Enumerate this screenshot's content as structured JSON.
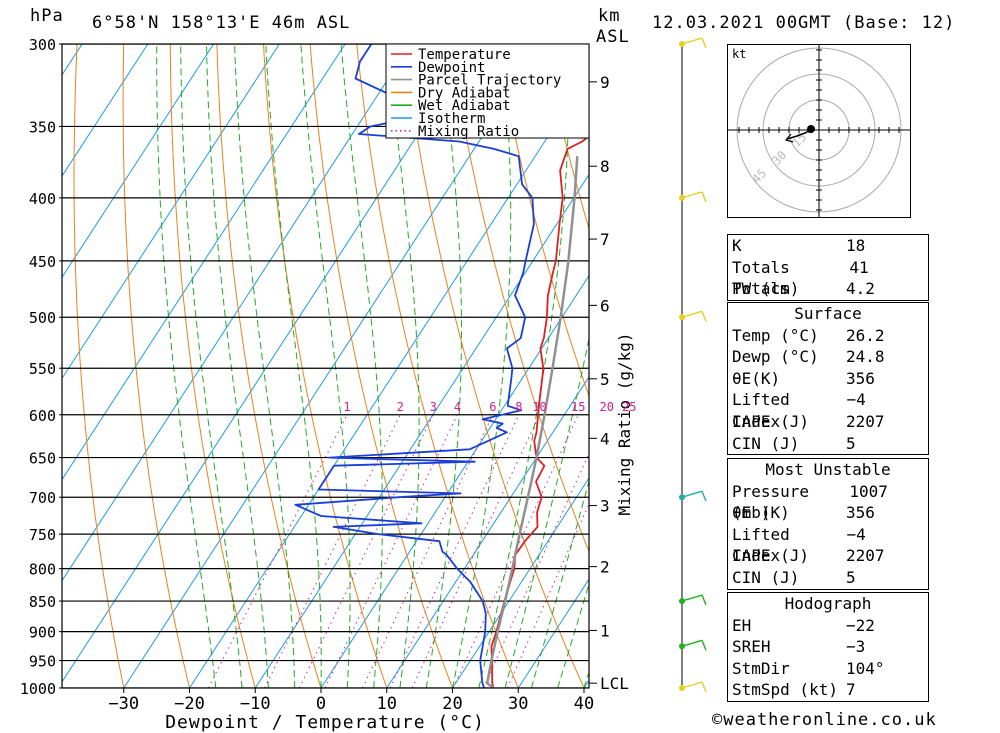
{
  "header": {
    "left_unit": "hPa",
    "location": "6°58'N 158°13'E 46m ASL",
    "km_label": "km",
    "asl_label": "ASL",
    "datetime": "12.03.2021 00GMT (Base: 12)"
  },
  "chart_data": {
    "type": "line",
    "xlabel": "Dewpoint / Temperature (°C)",
    "ylabel_left": "hPa",
    "ylabel_right": "Mixing Ratio (g/kg)",
    "pressure_ticks": [
      300,
      350,
      400,
      450,
      500,
      550,
      600,
      650,
      700,
      750,
      800,
      850,
      900,
      950,
      1000
    ],
    "temp_ticks": [
      -30,
      -20,
      -10,
      0,
      10,
      20,
      30,
      40
    ],
    "height_ticks_km": [
      {
        "label": "9",
        "p": 322
      },
      {
        "label": "8",
        "p": 377
      },
      {
        "label": "7",
        "p": 432
      },
      {
        "label": "6",
        "p": 489
      },
      {
        "label": "5",
        "p": 561
      },
      {
        "label": "4",
        "p": 627
      },
      {
        "label": "3",
        "p": 711
      },
      {
        "label": "2",
        "p": 797
      },
      {
        "label": "1",
        "p": 898
      },
      {
        "label": "LCL",
        "p": 991
      }
    ],
    "mixing_ratio_labels": [
      "1",
      "2",
      "3",
      "4",
      "6",
      "8",
      "10",
      "15",
      "20",
      "25"
    ],
    "mixing_ratio_values": [
      1,
      2,
      3,
      4,
      6,
      8,
      10,
      15,
      20,
      25
    ],
    "legend": [
      {
        "name": "Temperature",
        "color": "#e02020",
        "style": "solid"
      },
      {
        "name": "Dewpoint",
        "color": "#1a3fd6",
        "style": "solid"
      },
      {
        "name": "Parcel Trajectory",
        "color": "#909090",
        "style": "solid"
      },
      {
        "name": "Dry Adiabat",
        "color": "#e8821e",
        "style": "solid"
      },
      {
        "name": "Wet Adiabat",
        "color": "#22aa22",
        "style": "solid"
      },
      {
        "name": "Isotherm",
        "color": "#1f9be0",
        "style": "solid"
      },
      {
        "name": "Mixing Ratio",
        "color": "#d02090",
        "style": "dotted"
      }
    ],
    "series": [
      {
        "name": "Temperature",
        "color": "#e02020",
        "points": [
          [
            1000,
            26.2
          ],
          [
            990,
            25.5
          ],
          [
            950,
            23.3
          ],
          [
            925,
            21.8
          ],
          [
            900,
            21.1
          ],
          [
            850,
            19.3
          ],
          [
            800,
            17.6
          ],
          [
            780,
            16.4
          ],
          [
            760,
            16.5
          ],
          [
            740,
            17.0
          ],
          [
            720,
            15.5
          ],
          [
            700,
            14.7
          ],
          [
            680,
            12.3
          ],
          [
            660,
            12.0
          ],
          [
            650,
            10.0
          ],
          [
            630,
            8.0
          ],
          [
            620,
            7.5
          ],
          [
            600,
            6.0
          ],
          [
            580,
            4.5
          ],
          [
            560,
            3.0
          ],
          [
            550,
            2.2
          ],
          [
            530,
            -0.2
          ],
          [
            520,
            -0.7
          ],
          [
            500,
            -2.3
          ],
          [
            480,
            -4.3
          ],
          [
            460,
            -5.8
          ],
          [
            450,
            -6.5
          ],
          [
            420,
            -9.6
          ],
          [
            400,
            -11.7
          ],
          [
            380,
            -14.8
          ],
          [
            365,
            -15.8
          ],
          [
            360,
            -14.3
          ],
          [
            355,
            -13.6
          ]
        ]
      },
      {
        "name": "Dewpoint",
        "color": "#1a3fd6",
        "points": [
          [
            1000,
            24.8
          ],
          [
            990,
            24.0
          ],
          [
            950,
            21.5
          ],
          [
            900,
            19.4
          ],
          [
            870,
            17.7
          ],
          [
            850,
            16.0
          ],
          [
            820,
            12.2
          ],
          [
            800,
            8.9
          ],
          [
            780,
            6.0
          ],
          [
            775,
            5.0
          ],
          [
            760,
            3.5
          ],
          [
            750,
            -6.5
          ],
          [
            740,
            -14.0
          ],
          [
            735,
            -1.0
          ],
          [
            725,
            -17.0
          ],
          [
            710,
            -22.0
          ],
          [
            700,
            -7.0
          ],
          [
            695,
            2.0
          ],
          [
            690,
            -20.0
          ],
          [
            680,
            -20.0
          ],
          [
            660,
            -20.0
          ],
          [
            655,
            1.0
          ],
          [
            650,
            -21.5
          ],
          [
            640,
            -1.0
          ],
          [
            630,
            1.0
          ],
          [
            620,
            3.0
          ],
          [
            615,
            1.0
          ],
          [
            610,
            1.5
          ],
          [
            605,
            -2.0
          ],
          [
            595,
            3.0
          ],
          [
            590,
            0.5
          ],
          [
            560,
            -1.7
          ],
          [
            550,
            -2.5
          ],
          [
            530,
            -5.3
          ],
          [
            520,
            -4.2
          ],
          [
            500,
            -5.6
          ],
          [
            480,
            -9.3
          ],
          [
            460,
            -10.3
          ],
          [
            450,
            -11.1
          ],
          [
            420,
            -13.5
          ],
          [
            400,
            -16.3
          ],
          [
            390,
            -19.2
          ],
          [
            370,
            -22.5
          ],
          [
            365,
            -27.0
          ],
          [
            360,
            -33.0
          ],
          [
            355,
            -49.0
          ],
          [
            350,
            -48.0
          ],
          [
            345,
            -43.0
          ],
          [
            330,
            -48.0
          ],
          [
            320,
            -55.0
          ],
          [
            310,
            -56.0
          ],
          [
            300,
            -56.0
          ]
        ]
      },
      {
        "name": "Parcel Trajectory",
        "color": "#909090",
        "points": [
          [
            1000,
            26.2
          ],
          [
            991,
            24.8
          ],
          [
            950,
            23.2
          ],
          [
            900,
            21.3
          ],
          [
            850,
            19.4
          ],
          [
            800,
            17.3
          ],
          [
            750,
            15.0
          ],
          [
            700,
            12.6
          ],
          [
            650,
            10.0
          ],
          [
            600,
            7.0
          ],
          [
            550,
            3.6
          ],
          [
            500,
            -0.2
          ],
          [
            450,
            -4.6
          ],
          [
            400,
            -9.9
          ],
          [
            370,
            -13.6
          ]
        ]
      }
    ]
  },
  "hodograph": {
    "unit": "kt",
    "ring_labels": [
      "15",
      "30",
      "45"
    ]
  },
  "stats": {
    "indices": [
      {
        "label": "K",
        "value": "18"
      },
      {
        "label": "Totals Totals",
        "value": "41"
      },
      {
        "label": "PW (cm)",
        "value": "4.2"
      }
    ],
    "surface": {
      "title": "Surface",
      "rows": [
        {
          "label": "Temp (°C)",
          "value": "26.2"
        },
        {
          "label": "Dewp (°C)",
          "value": "24.8"
        },
        {
          "label": "θE(K)",
          "value": "356"
        },
        {
          "label": "Lifted Index",
          "value": "-4"
        },
        {
          "label": "CAPE (J)",
          "value": "2207"
        },
        {
          "label": "CIN (J)",
          "value": "5"
        }
      ]
    },
    "most_unstable": {
      "title": "Most Unstable",
      "rows": [
        {
          "label": "Pressure (mb)",
          "value": "1007"
        },
        {
          "label": "θE (K)",
          "value": "356"
        },
        {
          "label": "Lifted Index",
          "value": "-4"
        },
        {
          "label": "CAPE (J)",
          "value": "2207"
        },
        {
          "label": "CIN (J)",
          "value": "5"
        }
      ]
    },
    "hodograph": {
      "title": "Hodograph",
      "rows": [
        {
          "label": "EH",
          "value": "-22"
        },
        {
          "label": "SREH",
          "value": "-3"
        },
        {
          "label": "StmDir",
          "value": "104°"
        },
        {
          "label": "StmSpd (kt)",
          "value": "7"
        }
      ]
    }
  },
  "wind_profile": {
    "levels_hpa": [
      300,
      400,
      500,
      700,
      850,
      925,
      1000
    ],
    "colors": [
      "#e0d020",
      "#e0d020",
      "#e0d020",
      "#20b0a0",
      "#20b020",
      "#20b020",
      "#e0d020"
    ]
  },
  "credit": "©weatheronline.co.uk"
}
